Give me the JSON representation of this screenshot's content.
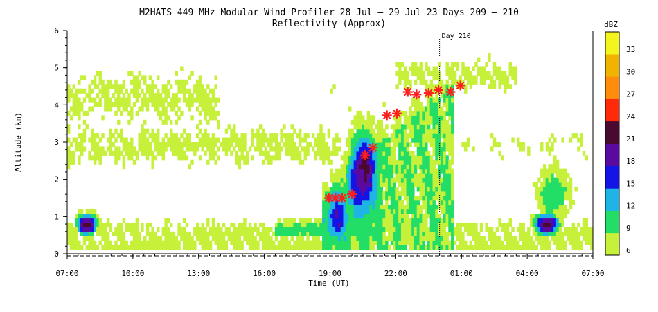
{
  "chart_data": {
    "type": "heatmap",
    "title": "M2HATS 449 MHz Modular Wind Profiler  28 Jul – 29 Jul 23 Days 209 – 210",
    "subtitle": "Reflectivity (Approx)",
    "xlabel": "Time (UT)",
    "ylabel": "Altitude (km)",
    "x_start_hours": 7,
    "x_end_hours": 31,
    "x_ticks": [
      {
        "h": 7,
        "label": "07:00"
      },
      {
        "h": 10,
        "label": "10:00"
      },
      {
        "h": 13,
        "label": "13:00"
      },
      {
        "h": 16,
        "label": "16:00"
      },
      {
        "h": 19,
        "label": "19:00"
      },
      {
        "h": 22,
        "label": "22:00"
      },
      {
        "h": 25,
        "label": "01:00"
      },
      {
        "h": 28,
        "label": "04:00"
      },
      {
        "h": 31,
        "label": "07:00"
      }
    ],
    "ylim": [
      0,
      6
    ],
    "y_ticks": [
      "0",
      "1",
      "2",
      "3",
      "4",
      "5",
      "6"
    ],
    "day_marker": {
      "h": 24,
      "label": "Day 210"
    },
    "colorbar": {
      "unit": "dBZ",
      "levels": [
        {
          "label": "6",
          "color": "#c6f03a"
        },
        {
          "label": "9",
          "color": "#22dd66"
        },
        {
          "label": "12",
          "color": "#1eb4e6"
        },
        {
          "label": "15",
          "color": "#1414e6"
        },
        {
          "label": "18",
          "color": "#5a0aa0"
        },
        {
          "label": "21",
          "color": "#4a0a30"
        },
        {
          "label": "24",
          "color": "#ff2a0a"
        },
        {
          "label": "27",
          "color": "#ff8c0a"
        },
        {
          "label": "30",
          "color": "#f0b400"
        },
        {
          "label": "33",
          "color": "#f5f51e"
        }
      ]
    },
    "markers": [
      {
        "h": 18.95,
        "alt": 1.5
      },
      {
        "h": 19.25,
        "alt": 1.5
      },
      {
        "h": 19.55,
        "alt": 1.5
      },
      {
        "h": 20.0,
        "alt": 1.6
      },
      {
        "h": 20.6,
        "alt": 2.65
      },
      {
        "h": 20.95,
        "alt": 2.85
      },
      {
        "h": 21.6,
        "alt": 3.72
      },
      {
        "h": 22.05,
        "alt": 3.77
      },
      {
        "h": 22.55,
        "alt": 4.35
      },
      {
        "h": 22.95,
        "alt": 4.28
      },
      {
        "h": 23.5,
        "alt": 4.32
      },
      {
        "h": 23.95,
        "alt": 4.4
      },
      {
        "h": 24.5,
        "alt": 4.35
      },
      {
        "h": 24.95,
        "alt": 4.52
      }
    ],
    "marker_color": "#ff1e1e"
  }
}
